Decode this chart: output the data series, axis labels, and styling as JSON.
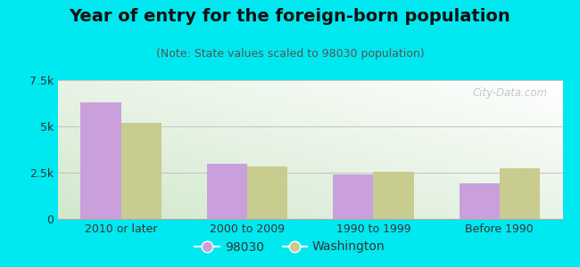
{
  "title": "Year of entry for the foreign-born population",
  "subtitle": "(Note: State values scaled to 98030 population)",
  "categories": [
    "2010 or later",
    "2000 to 2009",
    "1990 to 1999",
    "Before 1990"
  ],
  "series_98030": [
    6300,
    3000,
    2400,
    1900
  ],
  "series_washington": [
    5200,
    2850,
    2550,
    2750
  ],
  "color_98030": "#c9a0dc",
  "color_washington": "#c8cc8f",
  "background_outer": "#00e8f0",
  "background_chart_tl": "#ffffff",
  "background_chart_br": "#d4e8d0",
  "ylim": [
    0,
    7500
  ],
  "yticks": [
    0,
    2500,
    5000,
    7500
  ],
  "ytick_labels": [
    "0",
    "2.5k",
    "5k",
    "7.5k"
  ],
  "legend_label_98030": "98030",
  "legend_label_washington": "Washington",
  "bar_width": 0.32,
  "watermark": "City-Data.com",
  "title_fontsize": 14,
  "subtitle_fontsize": 9
}
